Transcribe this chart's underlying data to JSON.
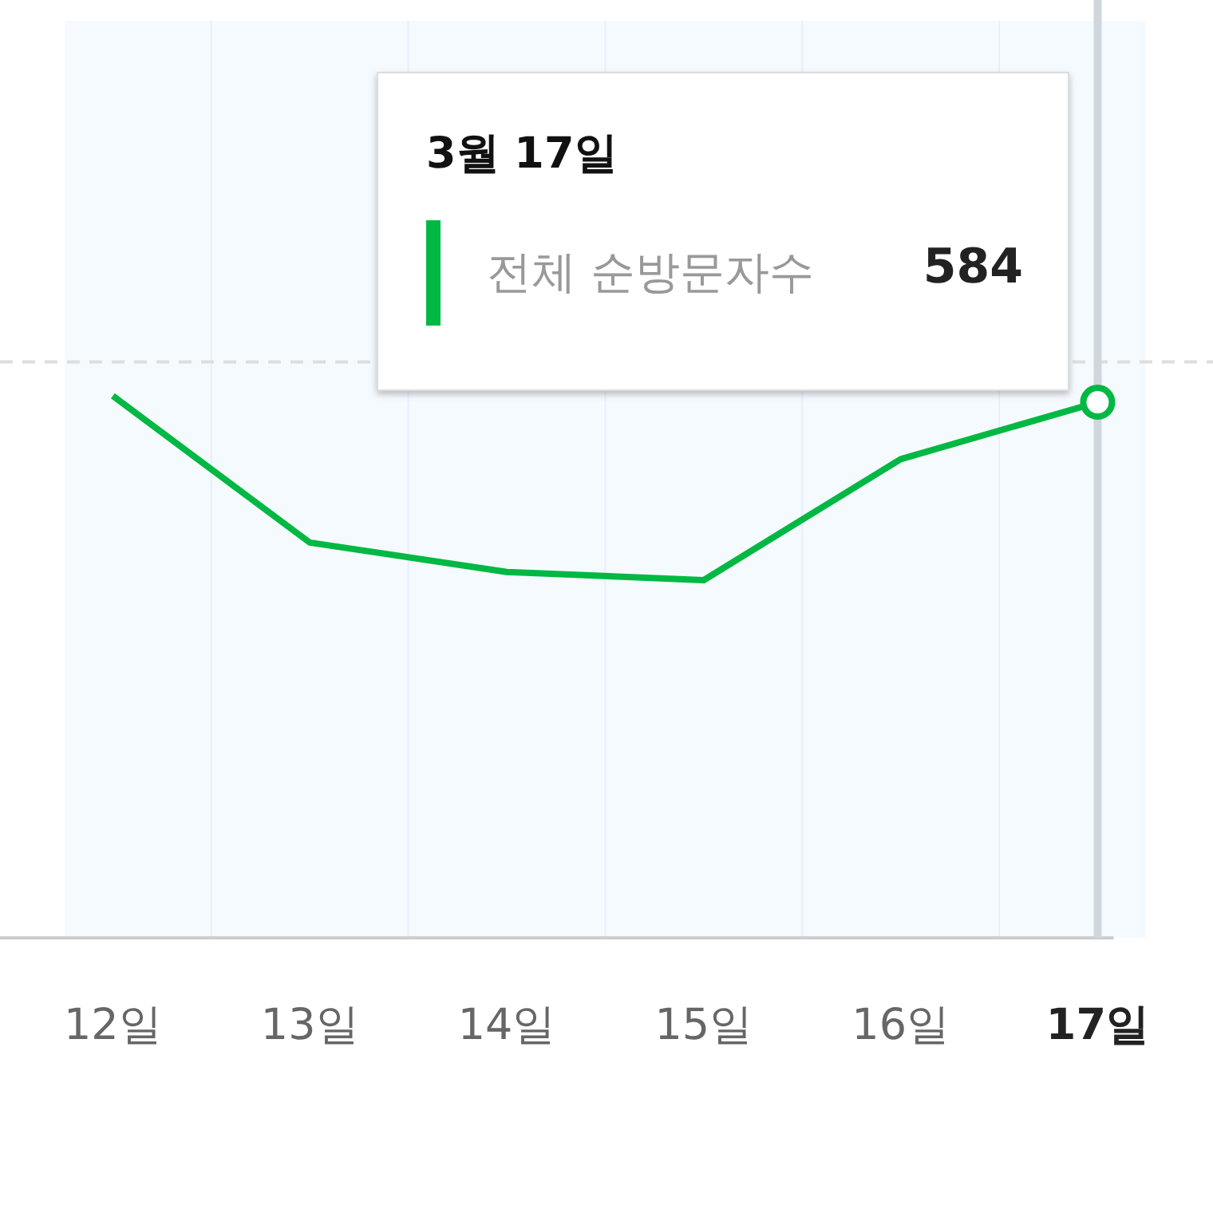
{
  "chart_data": {
    "type": "line",
    "ylim": [
      0,
      1000
    ],
    "tick_labels": "x",
    "categories": [
      "12일",
      "13일",
      "14일",
      "15일",
      "16일",
      "17일"
    ],
    "series": [
      {
        "name": "전체 순방문자수",
        "color": "#00b843",
        "values": [
          591,
          431,
          399,
          390,
          522,
          584
        ],
        "value_labels": [
          null,
          null,
          null,
          null,
          null,
          "584"
        ]
      }
    ],
    "annotations": [
      "3월 17일"
    ],
    "ref_lines": [
      {
        "axis": "y",
        "value": 628,
        "color": "#dddddd",
        "line_style": "dashed"
      },
      {
        "axis": "x",
        "value": "17일",
        "color": "#cfd6dc",
        "line_style": "solid"
      }
    ],
    "marker": "none",
    "line_style": "solid",
    "grid": false
  }
}
